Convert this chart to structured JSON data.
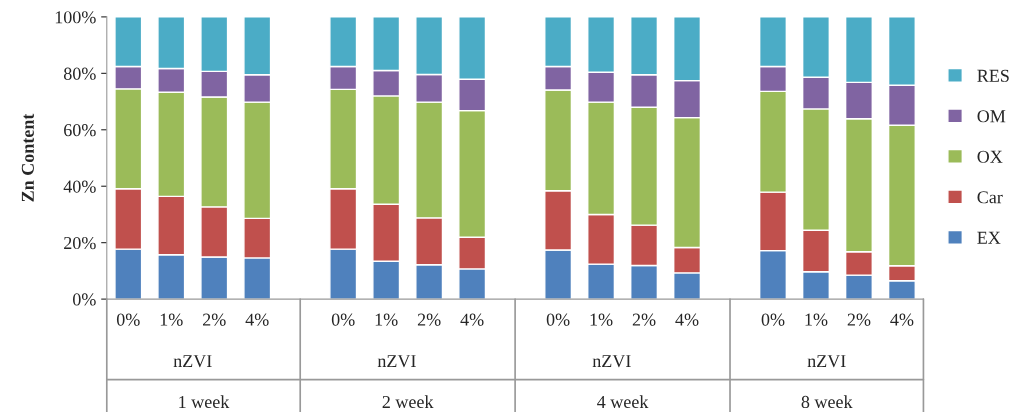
{
  "chart_data": {
    "type": "bar",
    "stacked": true,
    "ylabel": "Zn Content",
    "categories": [
      "0%",
      "1%",
      "2%",
      "4%",
      null,
      "0%",
      "1%",
      "2%",
      "4%",
      null,
      "0%",
      "1%",
      "2%",
      "4%",
      null,
      "0%",
      "1%",
      "2%",
      "4%"
    ],
    "series": [
      {
        "name": "EX",
        "color": "#4f81bd",
        "values": [
          17.7,
          15.7,
          14.9,
          14.6,
          null,
          17.7,
          13.4,
          12.2,
          10.7,
          null,
          17.4,
          12.4,
          11.9,
          9.3,
          null,
          17.2,
          9.7,
          8.5,
          6.5
        ]
      },
      {
        "name": "Car",
        "color": "#c0504d",
        "values": [
          21.4,
          20.7,
          17.8,
          14.0,
          null,
          21.4,
          20.2,
          16.6,
          11.2,
          null,
          21.0,
          17.6,
          14.3,
          9.0,
          null,
          20.7,
          14.7,
          8.3,
          5.3
        ]
      },
      {
        "name": "OX",
        "color": "#9bbb59",
        "values": [
          35.4,
          36.9,
          38.9,
          41.2,
          null,
          35.2,
          38.4,
          41.0,
          44.9,
          null,
          35.7,
          39.8,
          41.8,
          46.0,
          null,
          35.7,
          43.0,
          47.1,
          49.8
        ]
      },
      {
        "name": "OM",
        "color": "#8064a2",
        "values": [
          7.9,
          8.4,
          9.1,
          9.7,
          null,
          8.1,
          9.0,
          9.8,
          11.1,
          null,
          8.3,
          10.6,
          11.5,
          13.1,
          null,
          8.8,
          11.2,
          12.9,
          14.2
        ]
      },
      {
        "name": "RES",
        "color": "#4bacc6",
        "values": [
          17.6,
          18.3,
          19.3,
          20.5,
          null,
          17.6,
          19.0,
          20.4,
          22.1,
          null,
          17.6,
          19.6,
          20.5,
          22.6,
          null,
          17.6,
          21.4,
          23.2,
          24.2
        ]
      }
    ],
    "ylim": [
      0,
      100
    ],
    "yticks": [
      {
        "value": 0,
        "label": "0%"
      },
      {
        "value": 20,
        "label": "20%"
      },
      {
        "value": 40,
        "label": "40%"
      },
      {
        "value": 60,
        "label": "60%"
      },
      {
        "value": 80,
        "label": "80%"
      },
      {
        "value": 100,
        "label": "100%"
      }
    ],
    "annotations": [
      "nZVI",
      "1 week",
      "nZVI",
      "2 week",
      "nZVI",
      "4 week",
      "nZVI",
      "8 week"
    ],
    "legend": "right",
    "grid": false
  }
}
